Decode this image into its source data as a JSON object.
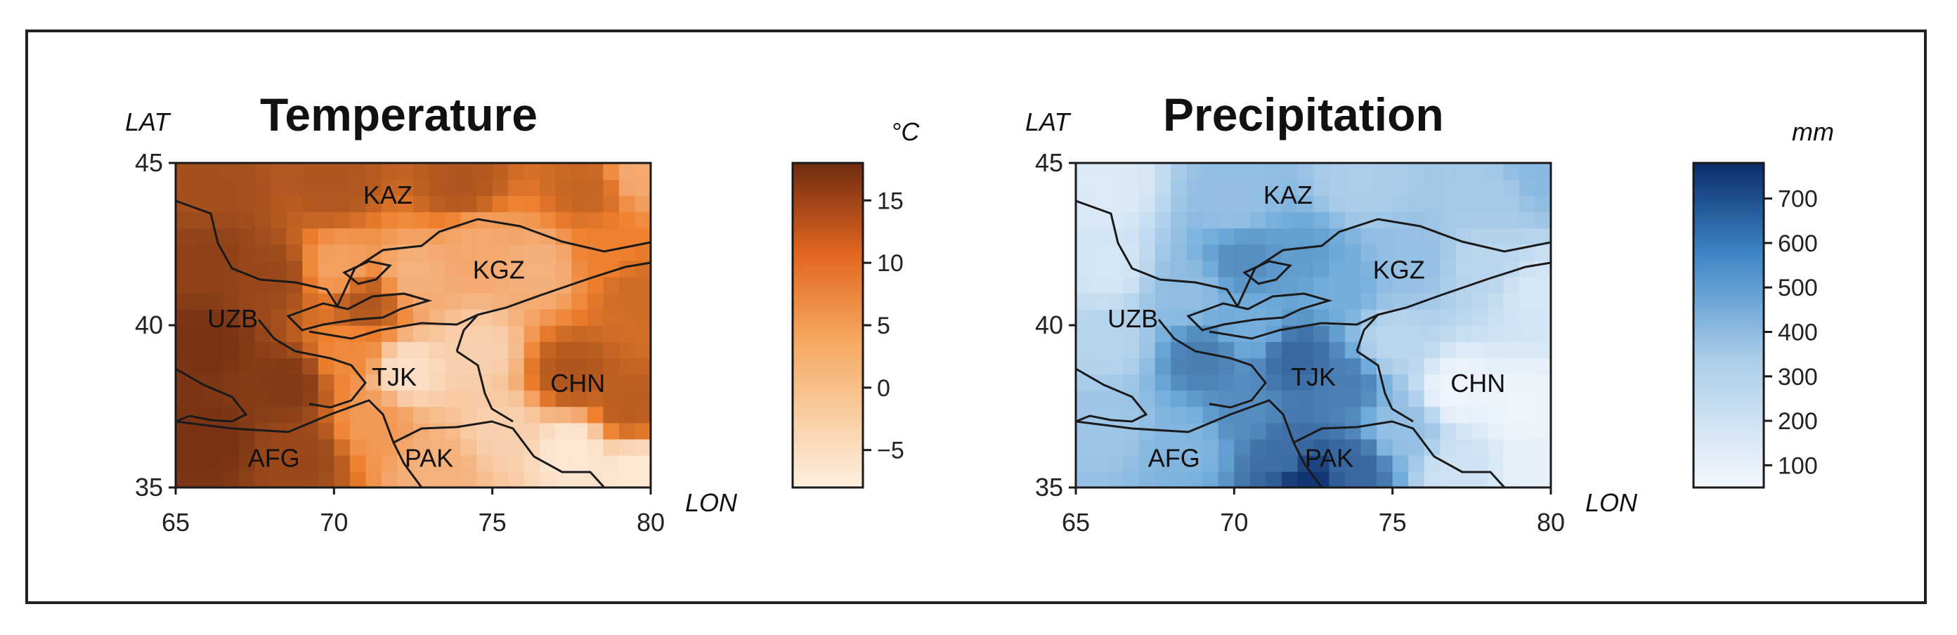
{
  "chart_data": [
    {
      "type": "heatmap",
      "id": "temp",
      "title": "Temperature",
      "xlabel": "LON",
      "ylabel": "LAT",
      "xlim": [
        65,
        80
      ],
      "ylim": [
        35,
        45
      ],
      "xticks": [
        "65",
        "70",
        "75",
        "80"
      ],
      "yticks": [
        "45",
        "40",
        "35"
      ],
      "colorbar": {
        "unit": "°C",
        "range": [
          -8,
          18
        ],
        "ticks": [
          "15",
          "10",
          "5",
          "0",
          "−5"
        ],
        "tick_values": [
          15,
          10,
          5,
          0,
          -5
        ],
        "color_low": "#fdf0e0",
        "color_mid": "#ee7f2c",
        "color_high": "#6e2c12"
      },
      "countries": [
        {
          "name": "KAZ",
          "lon": 71.7,
          "lat": 44.0
        },
        {
          "name": "KGZ",
          "lon": 75.2,
          "lat": 41.7
        },
        {
          "name": "UZB",
          "lon": 66.8,
          "lat": 40.2
        },
        {
          "name": "TJK",
          "lon": 71.9,
          "lat": 38.4
        },
        {
          "name": "CHN",
          "lon": 77.7,
          "lat": 38.2
        },
        {
          "name": "AFG",
          "lon": 68.1,
          "lat": 35.9
        },
        {
          "name": "PAK",
          "lon": 73.0,
          "lat": 35.9
        }
      ],
      "field_anchors": [
        [
          66.0,
          44.2,
          13
        ],
        [
          70.0,
          44.3,
          12
        ],
        [
          74.0,
          44.3,
          12
        ],
        [
          78.0,
          44.2,
          10
        ],
        [
          79.6,
          44.7,
          1
        ],
        [
          66.0,
          42.0,
          15
        ],
        [
          68.0,
          41.5,
          14
        ],
        [
          71.0,
          40.7,
          12
        ],
        [
          70.2,
          41.8,
          2
        ],
        [
          72.5,
          41.6,
          0
        ],
        [
          74.5,
          42.5,
          1
        ],
        [
          76.5,
          41.8,
          0
        ],
        [
          78.5,
          42.3,
          6
        ],
        [
          79.5,
          41.0,
          9
        ],
        [
          66.0,
          39.5,
          17
        ],
        [
          68.5,
          38.2,
          16
        ],
        [
          70.5,
          39.2,
          5
        ],
        [
          72.3,
          38.6,
          -6
        ],
        [
          74.5,
          39.2,
          -4
        ],
        [
          77.5,
          38.5,
          12
        ],
        [
          79.3,
          37.5,
          11
        ],
        [
          66.0,
          36.5,
          17
        ],
        [
          69.0,
          36.0,
          14
        ],
        [
          71.3,
          37.0,
          3
        ],
        [
          73.2,
          35.6,
          0
        ],
        [
          75.3,
          36.8,
          -4
        ],
        [
          77.5,
          36.2,
          -7
        ],
        [
          79.5,
          35.5,
          -7
        ]
      ]
    },
    {
      "type": "heatmap",
      "id": "precip",
      "title": "Precipitation",
      "xlabel": "LON",
      "ylabel": "LAT",
      "xlim": [
        65,
        80
      ],
      "ylim": [
        35,
        45
      ],
      "xticks": [
        "65",
        "70",
        "75",
        "80"
      ],
      "yticks": [
        "45",
        "40",
        "35"
      ],
      "colorbar": {
        "unit": "mm",
        "range": [
          50,
          780
        ],
        "ticks": [
          "700",
          "600",
          "500",
          "400",
          "300",
          "200",
          "100"
        ],
        "tick_values": [
          700,
          600,
          500,
          400,
          300,
          200,
          100
        ],
        "color_low": "#f4f8fd",
        "color_mid": "#6aa7d8",
        "color_high": "#0b2c6b"
      },
      "countries": [
        {
          "name": "KAZ",
          "lon": 71.7,
          "lat": 44.0
        },
        {
          "name": "KGZ",
          "lon": 75.2,
          "lat": 41.7
        },
        {
          "name": "UZB",
          "lon": 66.8,
          "lat": 40.2
        },
        {
          "name": "TJK",
          "lon": 72.5,
          "lat": 38.4
        },
        {
          "name": "CHN",
          "lon": 77.7,
          "lat": 38.2
        },
        {
          "name": "AFG",
          "lon": 68.1,
          "lat": 35.9
        },
        {
          "name": "PAK",
          "lon": 73.0,
          "lat": 35.9
        }
      ],
      "field_anchors": [
        [
          66.0,
          44.2,
          120
        ],
        [
          70.0,
          43.8,
          330
        ],
        [
          74.0,
          44.3,
          260
        ],
        [
          78.0,
          44.0,
          280
        ],
        [
          79.7,
          44.8,
          360
        ],
        [
          66.0,
          41.8,
          140
        ],
        [
          68.5,
          41.0,
          340
        ],
        [
          70.3,
          42.0,
          520
        ],
        [
          72.3,
          42.0,
          480
        ],
        [
          73.3,
          41.3,
          420
        ],
        [
          75.5,
          42.0,
          330
        ],
        [
          78.0,
          41.8,
          220
        ],
        [
          79.5,
          41.0,
          140
        ],
        [
          66.0,
          39.5,
          230
        ],
        [
          69.0,
          39.0,
          560
        ],
        [
          70.5,
          40.0,
          420
        ],
        [
          72.0,
          39.0,
          620
        ],
        [
          73.5,
          38.2,
          560
        ],
        [
          75.0,
          39.5,
          220
        ],
        [
          77.0,
          38.0,
          70
        ],
        [
          79.0,
          37.5,
          70
        ],
        [
          66.0,
          37.0,
          300
        ],
        [
          68.5,
          36.4,
          380
        ],
        [
          70.2,
          37.3,
          520
        ],
        [
          71.5,
          36.0,
          600
        ],
        [
          72.3,
          35.2,
          760
        ],
        [
          73.8,
          35.6,
          620
        ],
        [
          75.3,
          36.8,
          330
        ],
        [
          77.0,
          35.5,
          160
        ],
        [
          79.5,
          35.4,
          90
        ]
      ]
    }
  ]
}
